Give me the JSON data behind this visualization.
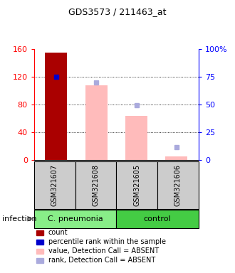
{
  "title": "GDS3573 / 211463_at",
  "samples": [
    "GSM321607",
    "GSM321608",
    "GSM321605",
    "GSM321606"
  ],
  "ylim_left": [
    0,
    160
  ],
  "ylim_right": [
    0,
    100
  ],
  "yticks_left": [
    0,
    40,
    80,
    120,
    160
  ],
  "yticks_right": [
    0,
    25,
    50,
    75,
    100
  ],
  "ytick_labels_right": [
    "0",
    "25",
    "50",
    "75",
    "100%"
  ],
  "count_values": [
    155,
    null,
    null,
    null
  ],
  "count_color": "#aa0000",
  "percentile_values": [
    120,
    null,
    null,
    null
  ],
  "percentile_color": "#0000cc",
  "value_absent": [
    null,
    108,
    63,
    5
  ],
  "value_absent_color": "#ffbbbb",
  "rank_absent": [
    null,
    112,
    79,
    18
  ],
  "rank_absent_color": "#aaaadd",
  "bar_width": 0.55,
  "x_positions": [
    0,
    1,
    2,
    3
  ],
  "xlim": [
    -0.55,
    3.55
  ],
  "group_configs": [
    {
      "label": "C. pneumonia",
      "start": 0,
      "span": 2,
      "color": "#88ee88"
    },
    {
      "label": "control",
      "start": 2,
      "span": 2,
      "color": "#44cc44"
    }
  ],
  "legend_items": [
    {
      "color": "#aa0000",
      "label": "count"
    },
    {
      "color": "#0000cc",
      "label": "percentile rank within the sample"
    },
    {
      "color": "#ffbbbb",
      "label": "value, Detection Call = ABSENT"
    },
    {
      "color": "#aaaadd",
      "label": "rank, Detection Call = ABSENT"
    }
  ],
  "infection_label": "infection",
  "dotted_lines": [
    40,
    80,
    120
  ],
  "title_fontsize": 9,
  "axis_tick_fontsize": 8,
  "sample_fontsize": 7,
  "group_fontsize": 8,
  "legend_fontsize": 7,
  "infection_fontsize": 8
}
